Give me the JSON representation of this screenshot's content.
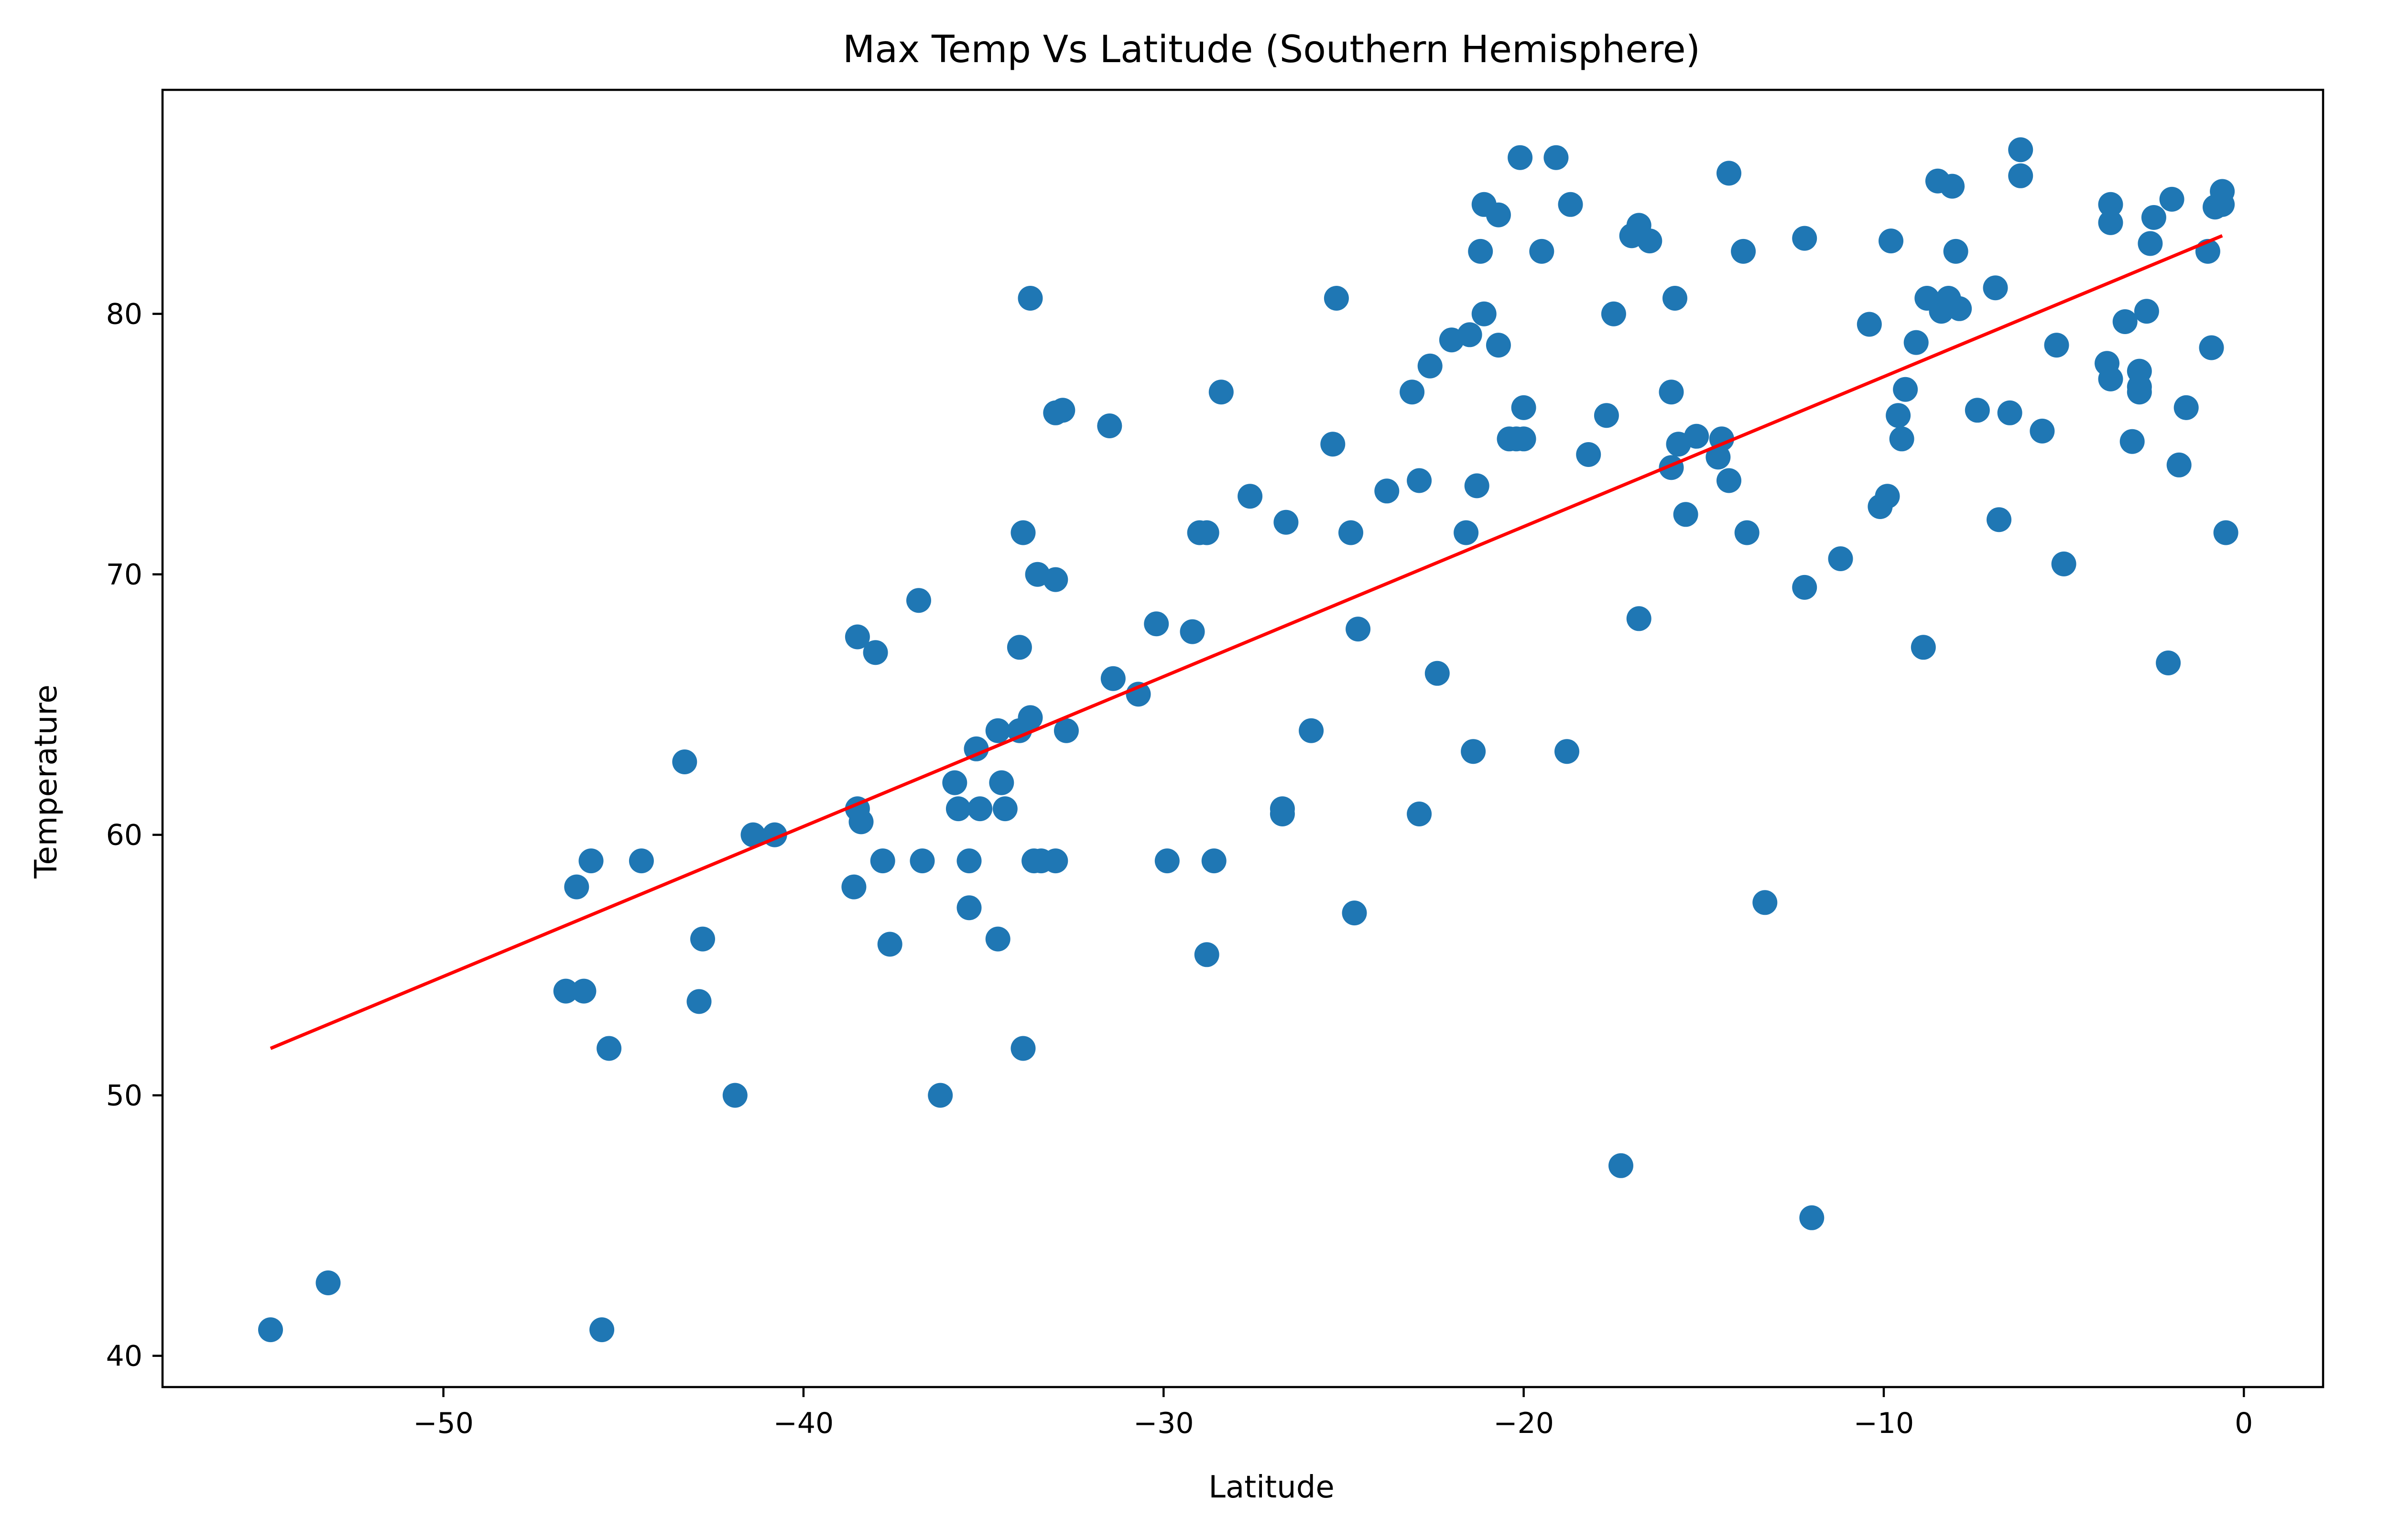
{
  "chart_data": {
    "type": "scatter",
    "title": "Max Temp Vs Latitude (Southern Hemisphere)",
    "xlabel": "Latitude",
    "ylabel": "Temperature",
    "xlim": [
      -57.8,
      2.2
    ],
    "ylim": [
      38.8,
      88.6
    ],
    "xticks": [
      -50,
      -40,
      -30,
      -20,
      -10,
      0
    ],
    "xtick_labels": [
      "−50",
      "−40",
      "−30",
      "−20",
      "−10",
      "0"
    ],
    "yticks": [
      40,
      50,
      60,
      70,
      80
    ],
    "ytick_labels": [
      "40",
      "50",
      "60",
      "70",
      "80"
    ],
    "grid": false,
    "marker_color": "#1f77b4",
    "line_color": "#ff0000",
    "regression_line": {
      "x": [
        -54.8,
        -0.6
      ],
      "y": [
        51.8,
        83.0
      ]
    },
    "points": [
      [
        -54.8,
        41.0
      ],
      [
        -53.2,
        42.8
      ],
      [
        -45.6,
        41.0
      ],
      [
        -46.6,
        54.0
      ],
      [
        -46.1,
        54.0
      ],
      [
        -46.3,
        58.0
      ],
      [
        -45.9,
        59.0
      ],
      [
        -45.4,
        51.8
      ],
      [
        -44.5,
        59.0
      ],
      [
        -43.3,
        62.8
      ],
      [
        -42.9,
        53.6
      ],
      [
        -42.8,
        56.0
      ],
      [
        -41.9,
        50.0
      ],
      [
        -41.4,
        60.0
      ],
      [
        -40.8,
        60.0
      ],
      [
        -38.6,
        58.0
      ],
      [
        -38.5,
        61.0
      ],
      [
        -38.4,
        60.5
      ],
      [
        -38.5,
        67.6
      ],
      [
        -38.0,
        67.0
      ],
      [
        -37.8,
        59.0
      ],
      [
        -37.6,
        55.8
      ],
      [
        -36.8,
        69.0
      ],
      [
        -36.7,
        59.0
      ],
      [
        -36.2,
        50.0
      ],
      [
        -35.8,
        62.0
      ],
      [
        -35.7,
        61.0
      ],
      [
        -35.4,
        59.0
      ],
      [
        -35.4,
        57.2
      ],
      [
        -35.2,
        63.3
      ],
      [
        -35.1,
        61.0
      ],
      [
        -34.6,
        64.0
      ],
      [
        -34.6,
        56.0
      ],
      [
        -34.5,
        62.0
      ],
      [
        -34.4,
        61.0
      ],
      [
        -34.0,
        64.0
      ],
      [
        -34.0,
        67.2
      ],
      [
        -33.9,
        51.8
      ],
      [
        -33.9,
        71.6
      ],
      [
        -33.7,
        64.5
      ],
      [
        -33.7,
        80.6
      ],
      [
        -33.6,
        59.0
      ],
      [
        -33.5,
        70.0
      ],
      [
        -33.4,
        59.0
      ],
      [
        -33.0,
        69.8
      ],
      [
        -33.0,
        59.0
      ],
      [
        -33.0,
        76.2
      ],
      [
        -32.8,
        76.3
      ],
      [
        -32.7,
        64.0
      ],
      [
        -31.5,
        75.7
      ],
      [
        -31.4,
        66.0
      ],
      [
        -30.7,
        65.4
      ],
      [
        -30.2,
        68.1
      ],
      [
        -29.9,
        59.0
      ],
      [
        -29.2,
        67.8
      ],
      [
        -29.0,
        71.6
      ],
      [
        -28.8,
        71.6
      ],
      [
        -28.8,
        55.4
      ],
      [
        -28.6,
        59.0
      ],
      [
        -28.4,
        77.0
      ],
      [
        -27.6,
        73.0
      ],
      [
        -26.7,
        60.8
      ],
      [
        -26.7,
        61.0
      ],
      [
        -26.6,
        72.0
      ],
      [
        -25.9,
        64.0
      ],
      [
        -25.3,
        75.0
      ],
      [
        -25.2,
        80.6
      ],
      [
        -24.8,
        71.6
      ],
      [
        -24.7,
        57.0
      ],
      [
        -24.6,
        67.9
      ],
      [
        -23.8,
        73.2
      ],
      [
        -23.1,
        77.0
      ],
      [
        -22.9,
        73.6
      ],
      [
        -22.9,
        60.8
      ],
      [
        -22.6,
        78.0
      ],
      [
        -22.4,
        66.2
      ],
      [
        -22.0,
        79.0
      ],
      [
        -21.6,
        71.6
      ],
      [
        -21.5,
        79.2
      ],
      [
        -21.4,
        63.2
      ],
      [
        -21.3,
        73.4
      ],
      [
        -21.2,
        82.4
      ],
      [
        -21.1,
        84.2
      ],
      [
        -21.1,
        80.0
      ],
      [
        -20.7,
        83.8
      ],
      [
        -20.7,
        78.8
      ],
      [
        -20.4,
        75.2
      ],
      [
        -20.2,
        75.2
      ],
      [
        -20.1,
        86.0
      ],
      [
        -20.0,
        76.4
      ],
      [
        -20.0,
        75.2
      ],
      [
        -19.5,
        82.4
      ],
      [
        -19.1,
        86.0
      ],
      [
        -18.8,
        63.2
      ],
      [
        -18.7,
        84.2
      ],
      [
        -18.2,
        74.6
      ],
      [
        -17.7,
        76.1
      ],
      [
        -17.5,
        80.0
      ],
      [
        -17.3,
        47.3
      ],
      [
        -17.0,
        83.0
      ],
      [
        -16.8,
        68.3
      ],
      [
        -16.8,
        83.4
      ],
      [
        -16.5,
        82.8
      ],
      [
        -15.9,
        77.0
      ],
      [
        -15.9,
        74.1
      ],
      [
        -15.8,
        80.6
      ],
      [
        -15.7,
        75.0
      ],
      [
        -15.5,
        72.3
      ],
      [
        -15.2,
        75.3
      ],
      [
        -14.6,
        74.5
      ],
      [
        -14.5,
        75.2
      ],
      [
        -14.3,
        73.6
      ],
      [
        -14.3,
        85.4
      ],
      [
        -13.9,
        82.4
      ],
      [
        -13.8,
        71.6
      ],
      [
        -13.3,
        57.4
      ],
      [
        -12.2,
        82.9
      ],
      [
        -12.2,
        69.5
      ],
      [
        -12.0,
        45.3
      ],
      [
        -11.2,
        70.6
      ],
      [
        -10.4,
        79.6
      ],
      [
        -10.1,
        72.6
      ],
      [
        -9.9,
        73.0
      ],
      [
        -9.8,
        82.8
      ],
      [
        -9.6,
        76.1
      ],
      [
        -9.5,
        75.2
      ],
      [
        -9.4,
        77.1
      ],
      [
        -9.1,
        78.9
      ],
      [
        -8.9,
        67.2
      ],
      [
        -8.8,
        80.6
      ],
      [
        -8.5,
        85.1
      ],
      [
        -8.4,
        80.1
      ],
      [
        -8.2,
        80.6
      ],
      [
        -8.1,
        84.9
      ],
      [
        -8.0,
        82.4
      ],
      [
        -7.9,
        80.2
      ],
      [
        -7.4,
        76.3
      ],
      [
        -6.9,
        81.0
      ],
      [
        -6.8,
        72.1
      ],
      [
        -6.5,
        76.2
      ],
      [
        -6.2,
        86.3
      ],
      [
        -6.2,
        85.3
      ],
      [
        -5.6,
        75.5
      ],
      [
        -5.2,
        78.8
      ],
      [
        -5.0,
        70.4
      ],
      [
        -3.8,
        78.1
      ],
      [
        -3.7,
        84.2
      ],
      [
        -3.7,
        83.5
      ],
      [
        -3.7,
        77.5
      ],
      [
        -3.3,
        79.7
      ],
      [
        -3.1,
        75.1
      ],
      [
        -2.9,
        77.8
      ],
      [
        -2.9,
        77.2
      ],
      [
        -2.9,
        77.0
      ],
      [
        -2.7,
        80.1
      ],
      [
        -2.6,
        82.7
      ],
      [
        -2.5,
        83.7
      ],
      [
        -2.1,
        66.6
      ],
      [
        -2.0,
        84.4
      ],
      [
        -1.8,
        74.2
      ],
      [
        -1.6,
        76.4
      ],
      [
        -1.0,
        82.4
      ],
      [
        -0.9,
        78.7
      ],
      [
        -0.8,
        84.1
      ],
      [
        -0.6,
        84.2
      ],
      [
        -0.6,
        84.7
      ],
      [
        -0.5,
        71.6
      ]
    ]
  }
}
